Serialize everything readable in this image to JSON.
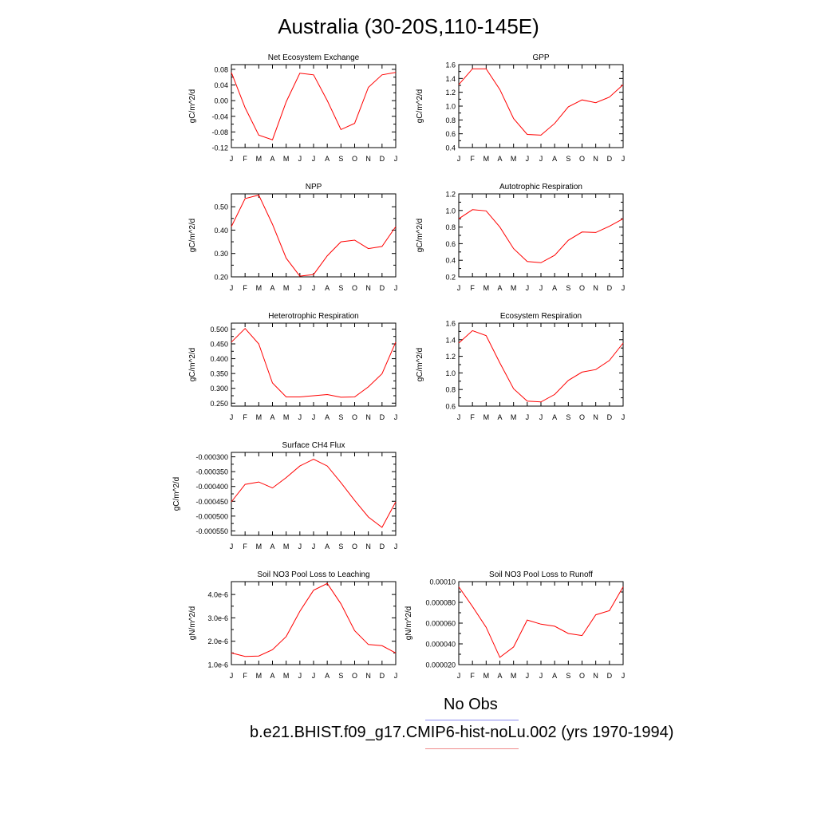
{
  "page": {
    "title": "Australia (30-20S,110-145E)",
    "legend": [
      {
        "label": "No Obs",
        "color": "#8c8cf0"
      },
      {
        "label": "b.e21.BHIST.f09_g17.CMIP6-hist-noLu.002 (yrs 1970-1994)",
        "color": "#f08c8c"
      }
    ]
  },
  "chart_data": [
    {
      "type": "line",
      "title": "Net Ecosystem Exchange",
      "ylabel": "gC/m^2/d",
      "categories": [
        "J",
        "F",
        "M",
        "A",
        "M",
        "J",
        "J",
        "A",
        "S",
        "O",
        "N",
        "D",
        "J"
      ],
      "ylim": [
        -0.12,
        0.092
      ],
      "yticks": [
        -0.12,
        -0.08,
        -0.04,
        0.0,
        0.04,
        0.08
      ],
      "ytick_labels": [
        "-0.12",
        "-0.08",
        "-0.04",
        "0.00",
        "0.04",
        "0.08"
      ],
      "series": [
        {
          "color": "#ff0000",
          "values": [
            0.072,
            -0.018,
            -0.088,
            -0.1,
            -0.003,
            0.07,
            0.066,
            0.0,
            -0.074,
            -0.058,
            0.034,
            0.066,
            0.072
          ]
        }
      ]
    },
    {
      "type": "line",
      "title": "GPP",
      "ylabel": "gC/m^2/d",
      "categories": [
        "J",
        "F",
        "M",
        "A",
        "M",
        "J",
        "J",
        "A",
        "S",
        "O",
        "N",
        "D",
        "J"
      ],
      "ylim": [
        0.4,
        1.6
      ],
      "yticks": [
        0.4,
        0.6,
        0.8,
        1.0,
        1.2,
        1.4,
        1.6
      ],
      "ytick_labels": [
        "0.4",
        "0.6",
        "0.8",
        "1.0",
        "1.2",
        "1.4",
        "1.6"
      ],
      "series": [
        {
          "color": "#ff0000",
          "values": [
            1.31,
            1.54,
            1.54,
            1.24,
            0.82,
            0.59,
            0.58,
            0.75,
            0.99,
            1.09,
            1.05,
            1.13,
            1.31
          ]
        }
      ]
    },
    {
      "type": "line",
      "title": "NPP",
      "ylabel": "gC/m^2/d",
      "categories": [
        "J",
        "F",
        "M",
        "A",
        "M",
        "J",
        "J",
        "A",
        "S",
        "O",
        "N",
        "D",
        "J"
      ],
      "ylim": [
        0.2,
        0.555
      ],
      "yticks": [
        0.2,
        0.3,
        0.4,
        0.5
      ],
      "ytick_labels": [
        "0.20",
        "0.30",
        "0.40",
        "0.50"
      ],
      "series": [
        {
          "color": "#ff0000",
          "values": [
            0.415,
            0.535,
            0.55,
            0.425,
            0.28,
            0.203,
            0.21,
            0.29,
            0.35,
            0.357,
            0.321,
            0.33,
            0.415
          ]
        }
      ]
    },
    {
      "type": "line",
      "title": "Autotrophic Respiration",
      "ylabel": "gC/m^2/d",
      "categories": [
        "J",
        "F",
        "M",
        "A",
        "M",
        "J",
        "J",
        "A",
        "S",
        "O",
        "N",
        "D",
        "J"
      ],
      "ylim": [
        0.2,
        1.2
      ],
      "yticks": [
        0.2,
        0.4,
        0.6,
        0.8,
        1.0,
        1.2
      ],
      "ytick_labels": [
        "0.2",
        "0.4",
        "0.6",
        "0.8",
        "1.0",
        "1.2"
      ],
      "series": [
        {
          "color": "#ff0000",
          "values": [
            0.9,
            1.01,
            0.995,
            0.8,
            0.54,
            0.385,
            0.37,
            0.46,
            0.64,
            0.74,
            0.735,
            0.81,
            0.9
          ]
        }
      ]
    },
    {
      "type": "line",
      "title": "Heterotrophic Respiration",
      "ylabel": "gC/m^2/d",
      "categories": [
        "J",
        "F",
        "M",
        "A",
        "M",
        "J",
        "J",
        "A",
        "S",
        "O",
        "N",
        "D",
        "J"
      ],
      "ylim": [
        0.24,
        0.52
      ],
      "yticks": [
        0.25,
        0.3,
        0.35,
        0.4,
        0.45,
        0.5
      ],
      "ytick_labels": [
        "0.250",
        "0.300",
        "0.350",
        "0.400",
        "0.450",
        "0.500"
      ],
      "series": [
        {
          "color": "#ff0000",
          "values": [
            0.456,
            0.502,
            0.45,
            0.318,
            0.271,
            0.271,
            0.275,
            0.279,
            0.27,
            0.271,
            0.305,
            0.349,
            0.456
          ]
        }
      ]
    },
    {
      "type": "line",
      "title": "Ecosystem Respiration",
      "ylabel": "gC/m^2/d",
      "categories": [
        "J",
        "F",
        "M",
        "A",
        "M",
        "J",
        "J",
        "A",
        "S",
        "O",
        "N",
        "D",
        "J"
      ],
      "ylim": [
        0.6,
        1.6
      ],
      "yticks": [
        0.6,
        0.8,
        1.0,
        1.2,
        1.4,
        1.6
      ],
      "ytick_labels": [
        "0.6",
        "0.8",
        "1.0",
        "1.2",
        "1.4",
        "1.6"
      ],
      "series": [
        {
          "color": "#ff0000",
          "values": [
            1.36,
            1.51,
            1.45,
            1.12,
            0.81,
            0.66,
            0.65,
            0.74,
            0.91,
            1.01,
            1.04,
            1.15,
            1.36
          ]
        }
      ]
    },
    {
      "type": "line",
      "title": "Surface CH4 Flux",
      "ylabel": "gC/m^2/d",
      "categories": [
        "J",
        "F",
        "M",
        "A",
        "M",
        "J",
        "J",
        "A",
        "S",
        "O",
        "N",
        "D",
        "J"
      ],
      "ylim": [
        -0.000565,
        -0.000285
      ],
      "yticks": [
        -0.00055,
        -0.0005,
        -0.00045,
        -0.0004,
        -0.00035,
        -0.0003
      ],
      "ytick_labels": [
        "-0.000550",
        "-0.000500",
        "-0.000450",
        "-0.000400",
        "-0.000350",
        "-0.000300"
      ],
      "series": [
        {
          "color": "#ff0000",
          "values": [
            -0.000452,
            -0.000393,
            -0.000385,
            -0.000405,
            -0.00037,
            -0.000331,
            -0.000308,
            -0.000331,
            -0.000387,
            -0.000447,
            -0.000503,
            -0.000538,
            -0.000452
          ]
        }
      ]
    },
    {
      "type": "line",
      "title": "Soil NO3 Pool Loss to Leaching",
      "ylabel": "gN/m^2/d",
      "categories": [
        "J",
        "F",
        "M",
        "A",
        "M",
        "J",
        "J",
        "A",
        "S",
        "O",
        "N",
        "D",
        "J"
      ],
      "ylim": [
        1e-06,
        4.55e-06
      ],
      "yticks": [
        1e-06,
        2e-06,
        3e-06,
        4e-06
      ],
      "ytick_labels": [
        "1.0e-6",
        "2.0e-6",
        "3.0e-6",
        "4.0e-6"
      ],
      "series": [
        {
          "color": "#ff0000",
          "values": [
            1.5e-06,
            1.35e-06,
            1.37e-06,
            1.64e-06,
            2.2e-06,
            3.28e-06,
            4.18e-06,
            4.47e-06,
            3.6e-06,
            2.45e-06,
            1.86e-06,
            1.81e-06,
            1.5e-06
          ]
        }
      ]
    },
    {
      "type": "line",
      "title": "Soil NO3 Pool Loss to Runoff",
      "ylabel": "gN/m^2/d",
      "categories": [
        "J",
        "F",
        "M",
        "A",
        "M",
        "J",
        "J",
        "A",
        "S",
        "O",
        "N",
        "D",
        "J"
      ],
      "ylim": [
        2e-05,
        0.0001
      ],
      "yticks": [
        2e-05,
        4e-05,
        6e-05,
        8e-05,
        0.0001
      ],
      "ytick_labels": [
        "0.000020",
        "0.000040",
        "0.000060",
        "0.000080",
        "0.00010"
      ],
      "series": [
        {
          "color": "#ff0000",
          "values": [
            9.5e-05,
            7.6e-05,
            5.6e-05,
            2.7e-05,
            3.7e-05,
            6.3e-05,
            5.9e-05,
            5.7e-05,
            5e-05,
            4.8e-05,
            6.8e-05,
            7.2e-05,
            9.5e-05
          ]
        }
      ]
    }
  ]
}
